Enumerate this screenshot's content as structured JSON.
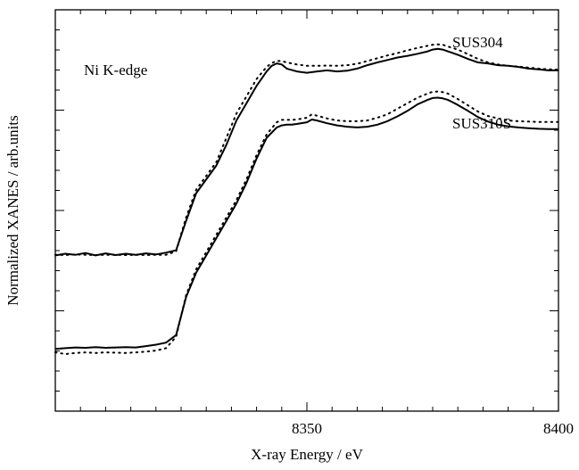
{
  "chart_data": {
    "type": "line",
    "title": "",
    "xlabel": "X-ray Energy / eV",
    "ylabel": "Normalized XANES / arb.units",
    "xlim": [
      8300,
      8400
    ],
    "ylim": [
      0,
      1.16
    ],
    "x_ticks": [
      8350,
      8400
    ],
    "x_tick_labels": [
      "8350",
      "8400"
    ],
    "yticks_shown": false,
    "grid": false,
    "legend": "none",
    "annotations": [
      {
        "text": "Ni K-edge"
      },
      {
        "text": "SUS304"
      },
      {
        "text": "SUS310S"
      }
    ],
    "series": [
      {
        "key": "sus304_solid",
        "style": "solid",
        "x": [
          8300,
          8302,
          8304,
          8306,
          8308,
          8310,
          8312,
          8314,
          8316,
          8318,
          8320,
          8322,
          8324,
          8326,
          8328,
          8330,
          8332,
          8334,
          8336,
          8338,
          8340,
          8342,
          8343,
          8344,
          8345,
          8346,
          8348,
          8350,
          8352,
          8354,
          8356,
          8358,
          8360,
          8362,
          8364,
          8366,
          8368,
          8370,
          8372,
          8374,
          8375,
          8376,
          8377,
          8378,
          8380,
          8382,
          8384,
          8386,
          8388,
          8390,
          8392,
          8394,
          8396,
          8398,
          8400
        ],
        "y": [
          0.45,
          0.455,
          0.452,
          0.457,
          0.45,
          0.456,
          0.451,
          0.455,
          0.452,
          0.456,
          0.453,
          0.458,
          0.465,
          0.55,
          0.63,
          0.67,
          0.71,
          0.77,
          0.84,
          0.89,
          0.94,
          0.982,
          0.998,
          1.005,
          1.002,
          0.99,
          0.982,
          0.978,
          0.982,
          0.985,
          0.982,
          0.984,
          0.99,
          1.0,
          1.008,
          1.015,
          1.022,
          1.027,
          1.033,
          1.04,
          1.045,
          1.047,
          1.045,
          1.04,
          1.03,
          1.018,
          1.008,
          1.005,
          1.0,
          0.998,
          0.995,
          0.99,
          0.988,
          0.985,
          0.985
        ]
      },
      {
        "key": "sus304_dotted",
        "style": "dotted",
        "x": [
          8300,
          8302,
          8304,
          8306,
          8308,
          8310,
          8312,
          8314,
          8316,
          8318,
          8320,
          8322,
          8324,
          8326,
          8328,
          8330,
          8332,
          8334,
          8336,
          8338,
          8340,
          8342,
          8343,
          8344,
          8345,
          8346,
          8348,
          8350,
          8352,
          8354,
          8356,
          8358,
          8360,
          8362,
          8364,
          8366,
          8368,
          8370,
          8372,
          8374,
          8375,
          8376,
          8377,
          8378,
          8380,
          8382,
          8384,
          8386,
          8388,
          8390,
          8392,
          8394,
          8396,
          8398,
          8400
        ],
        "y": [
          0.452,
          0.451,
          0.453,
          0.452,
          0.451,
          0.452,
          0.452,
          0.451,
          0.452,
          0.451,
          0.452,
          0.452,
          0.462,
          0.56,
          0.64,
          0.68,
          0.72,
          0.79,
          0.86,
          0.91,
          0.96,
          0.995,
          1.006,
          1.012,
          1.012,
          1.008,
          1.002,
          0.998,
          0.998,
          0.999,
          0.998,
          1.0,
          1.004,
          1.012,
          1.02,
          1.028,
          1.035,
          1.043,
          1.05,
          1.056,
          1.059,
          1.06,
          1.059,
          1.054,
          1.045,
          1.032,
          1.018,
          1.008,
          1.002,
          0.998,
          0.996,
          0.993,
          0.99,
          0.988,
          0.987
        ]
      },
      {
        "key": "sus310s_solid",
        "style": "solid",
        "x": [
          8300,
          8302,
          8304,
          8306,
          8308,
          8310,
          8312,
          8314,
          8316,
          8318,
          8320,
          8322,
          8324,
          8326,
          8328,
          8330,
          8332,
          8334,
          8336,
          8338,
          8340,
          8342,
          8344,
          8345,
          8346,
          8347,
          8348,
          8350,
          8351,
          8352,
          8354,
          8356,
          8358,
          8360,
          8362,
          8364,
          8366,
          8368,
          8370,
          8372,
          8374,
          8375,
          8376,
          8377,
          8378,
          8380,
          8382,
          8384,
          8386,
          8388,
          8390,
          8392,
          8394,
          8396,
          8398,
          8400
        ],
        "y": [
          0.18,
          0.182,
          0.184,
          0.183,
          0.185,
          0.183,
          0.184,
          0.185,
          0.184,
          0.188,
          0.192,
          0.198,
          0.22,
          0.33,
          0.4,
          0.45,
          0.5,
          0.55,
          0.6,
          0.66,
          0.73,
          0.79,
          0.82,
          0.826,
          0.828,
          0.828,
          0.83,
          0.835,
          0.843,
          0.84,
          0.832,
          0.826,
          0.822,
          0.82,
          0.822,
          0.828,
          0.838,
          0.852,
          0.868,
          0.887,
          0.9,
          0.905,
          0.906,
          0.904,
          0.9,
          0.885,
          0.868,
          0.85,
          0.837,
          0.828,
          0.823,
          0.82,
          0.818,
          0.816,
          0.815,
          0.815
        ]
      },
      {
        "key": "sus310s_dotted",
        "style": "dotted",
        "x": [
          8300,
          8302,
          8304,
          8306,
          8308,
          8310,
          8312,
          8314,
          8316,
          8318,
          8320,
          8322,
          8324,
          8326,
          8328,
          8330,
          8332,
          8334,
          8336,
          8338,
          8340,
          8342,
          8344,
          8345,
          8346,
          8347,
          8348,
          8350,
          8351,
          8352,
          8354,
          8356,
          8358,
          8360,
          8362,
          8364,
          8366,
          8368,
          8370,
          8372,
          8374,
          8375,
          8376,
          8377,
          8378,
          8380,
          8382,
          8384,
          8386,
          8388,
          8390,
          8392,
          8394,
          8396,
          8398,
          8400
        ],
        "y": [
          0.17,
          0.165,
          0.168,
          0.17,
          0.168,
          0.17,
          0.169,
          0.168,
          0.17,
          0.172,
          0.175,
          0.182,
          0.215,
          0.335,
          0.41,
          0.46,
          0.51,
          0.56,
          0.61,
          0.67,
          0.74,
          0.8,
          0.835,
          0.842,
          0.842,
          0.842,
          0.843,
          0.848,
          0.858,
          0.854,
          0.846,
          0.84,
          0.838,
          0.838,
          0.84,
          0.848,
          0.858,
          0.874,
          0.89,
          0.906,
          0.918,
          0.923,
          0.924,
          0.922,
          0.918,
          0.902,
          0.884,
          0.866,
          0.853,
          0.846,
          0.84,
          0.838,
          0.837,
          0.836,
          0.836,
          0.836
        ]
      }
    ]
  }
}
